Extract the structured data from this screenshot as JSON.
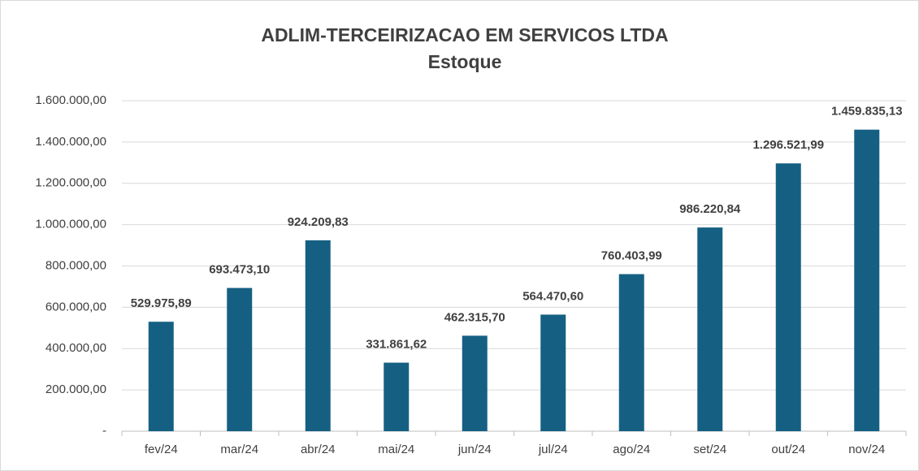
{
  "chart_data": {
    "type": "bar",
    "title": "ADLIM-TERCEIRIZACAO EM SERVICOS LTDA",
    "subtitle": "Estoque",
    "categories": [
      "fev/24",
      "mar/24",
      "abr/24",
      "mai/24",
      "jun/24",
      "jul/24",
      "ago/24",
      "set/24",
      "out/24",
      "nov/24"
    ],
    "values": [
      529975.89,
      693473.1,
      924209.83,
      331861.62,
      462315.7,
      564470.6,
      760403.99,
      986220.84,
      1296521.99,
      1459835.13
    ],
    "value_labels": [
      "529.975,89",
      "693.473,10",
      "924.209,83",
      "331.861,62",
      "462.315,70",
      "564.470,60",
      "760.403,99",
      "986.220,84",
      "1.296.521,99",
      "1.459.835,13"
    ],
    "color": "#156082",
    "ylim": [
      0,
      1600000
    ],
    "yticks": [
      {
        "value": 0,
        "label": "-"
      },
      {
        "value": 200000,
        "label": "200.000,00"
      },
      {
        "value": 400000,
        "label": "400.000,00"
      },
      {
        "value": 600000,
        "label": "600.000,00"
      },
      {
        "value": 800000,
        "label": "800.000,00"
      },
      {
        "value": 1000000,
        "label": "1.000.000,00"
      },
      {
        "value": 1200000,
        "label": "1.200.000,00"
      },
      {
        "value": 1400000,
        "label": "1.400.000,00"
      },
      {
        "value": 1600000,
        "label": "1.600.000,00"
      }
    ],
    "grid": true
  }
}
